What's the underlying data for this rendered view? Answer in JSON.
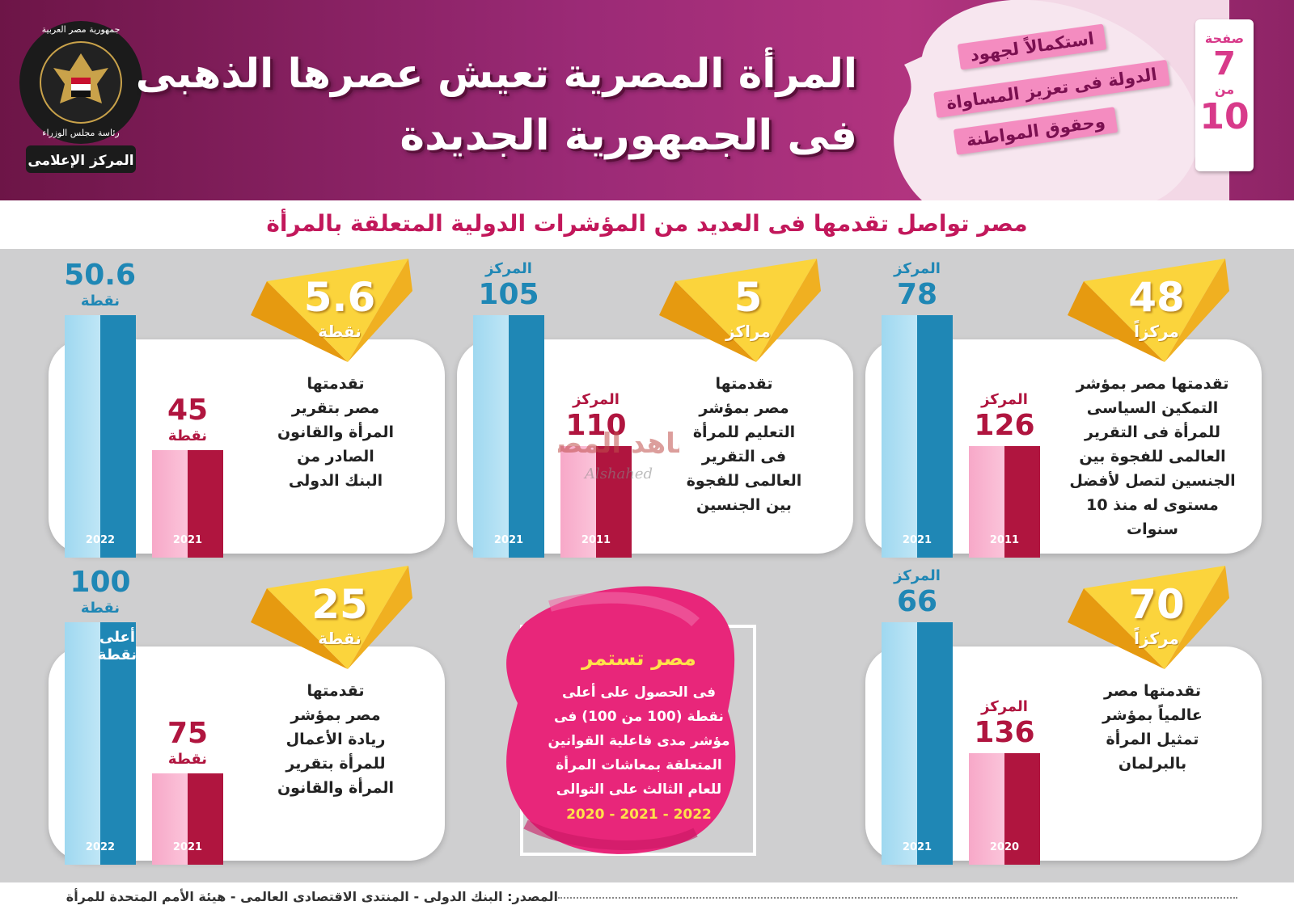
{
  "header": {
    "title_line1": "المرأة المصرية تعيش عصرها الذهبى",
    "title_line2": "فى الجمهورية الجديدة",
    "logo": {
      "top_text": "جمهورية مصر العربية",
      "mid_text": "رئاسة مجلس الوزراء",
      "bottom_text": "المركز الإعلامى"
    },
    "ribbons": [
      "استكمالاً لجهود",
      "الدولة فى تعزيز المساواة",
      "وحقوق المواطنة"
    ],
    "page": {
      "word": "صفحة",
      "number": "7",
      "of": "من",
      "total": "10"
    }
  },
  "subtitle": "مصر تواصل تقدمها فى العديد من المؤشرات الدولية المتعلقة بالمرأة",
  "colors": {
    "blue": "#1f87b5",
    "red": "#b0153f",
    "gold": "#f6b51b",
    "magenta": "#e8267a"
  },
  "chart_data": [
    {
      "type": "bar",
      "metric": "rank",
      "categories": [
        "2011",
        "2021"
      ],
      "values": [
        126,
        78
      ],
      "value_labels": [
        {
          "prefix": "المركز",
          "value": "126"
        },
        {
          "prefix": "المركز",
          "value": "78"
        }
      ],
      "improvement": {
        "value": "48",
        "unit": "مركزاً"
      },
      "description": "تقدمتها مصر بمؤشر\nالتمكين السياسى\nللمرأة فى التقرير\nالعالمى للفجوة بين\nالجنسين لتصل لأفضل\nمستوى له منذ 10\nسنوات"
    },
    {
      "type": "bar",
      "metric": "rank",
      "categories": [
        "2011",
        "2021"
      ],
      "values": [
        110,
        105
      ],
      "value_labels": [
        {
          "prefix": "المركز",
          "value": "110"
        },
        {
          "prefix": "المركز",
          "value": "105"
        }
      ],
      "improvement": {
        "value": "5",
        "unit": "مراكز"
      },
      "description": "تقدمتها\nمصر بمؤشر\nالتعليم للمرأة\nفى التقرير\nالعالمى للفجوة\nبين الجنسين"
    },
    {
      "type": "bar",
      "metric": "score",
      "categories": [
        "2021",
        "2022"
      ],
      "values": [
        45,
        50.6
      ],
      "value_labels": [
        {
          "value": "45",
          "suffix": "نقطة"
        },
        {
          "value": "50.6",
          "suffix": "نقطة"
        }
      ],
      "improvement": {
        "value": "5.6",
        "unit": "نقطة"
      },
      "description": "تقدمتها\nمصر بتقرير\nالمرأة والقانون\nالصادر من\nالبنك الدولى"
    },
    {
      "type": "bar",
      "metric": "rank",
      "categories": [
        "2020",
        "2021"
      ],
      "values": [
        136,
        66
      ],
      "value_labels": [
        {
          "prefix": "المركز",
          "value": "136"
        },
        {
          "prefix": "المركز",
          "value": "66"
        }
      ],
      "improvement": {
        "value": "70",
        "unit": "مركزاً"
      },
      "description": "تقدمتها مصر\nعالمياً بمؤشر\nتمثيل المرأة\nبالبرلمان"
    },
    {
      "type": "bar",
      "metric": "score",
      "categories": [
        "2021",
        "2022"
      ],
      "values": [
        75,
        100
      ],
      "value_labels": [
        {
          "value": "75",
          "suffix": "نقطة"
        },
        {
          "value": "100",
          "suffix": "نقطة"
        }
      ],
      "bar_note": "أعلى\nنقطة",
      "improvement": {
        "value": "25",
        "unit": "نقطة"
      },
      "description": "تقدمتها\nمصر بمؤشر\nريادة الأعمال\nللمرأة بتقرير\nالمرأة والقانون"
    }
  ],
  "center_box": {
    "title": "مصر تستمر",
    "body": "فى الحصول على أعلى\nنقطة (100 من 100) فى\nمؤشر مدى فاعلية القوانين\nالمتعلقة بمعاشات المرأة\nللعام الثالث على التوالى",
    "years": "2022 - 2021 - 2020"
  },
  "watermark": {
    "text": "الشاهد المصرى",
    "latin": "Alshahed"
  },
  "footer": {
    "source": "المصدر: البنك الدولى - المنتدى الاقتصادى العالمى - هيئة الأمم المتحدة للمرأة"
  }
}
